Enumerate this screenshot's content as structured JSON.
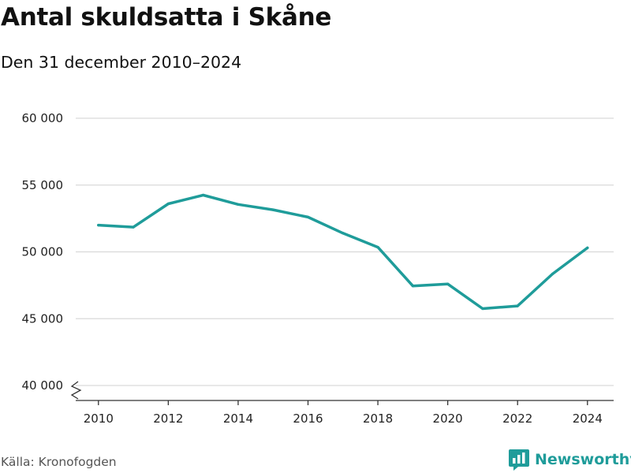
{
  "header": {
    "title": "Antal skuldsatta i Skåne",
    "subtitle": "Den 31 december 2010–2024"
  },
  "footer": {
    "source": "Källa: Kronofogden",
    "brand": "Newsworthy"
  },
  "colors": {
    "line": "#1f9c9a",
    "grid": "#d9d9d9",
    "axis": "#333333",
    "brand": "#1f9c9a"
  },
  "icons": {
    "brand_logo": "bar-chart-speech-bubble-icon",
    "axis_break": "zigzag-axis-break-icon"
  },
  "chart_data": {
    "type": "line",
    "title": "Antal skuldsatta i Skåne",
    "subtitle": "Den 31 december 2010–2024",
    "xlabel": "",
    "ylabel": "",
    "x": [
      2010,
      2011,
      2012,
      2013,
      2014,
      2015,
      2016,
      2017,
      2018,
      2019,
      2020,
      2021,
      2022,
      2023,
      2024
    ],
    "series": [
      {
        "values": [
          52000,
          51850,
          53600,
          54250,
          53550,
          53150,
          52600,
          51400,
          50350,
          47450,
          47600,
          45750,
          45950,
          48350,
          50300
        ]
      }
    ],
    "xlim": [
      2009.35,
      2024.75
    ],
    "ylim": [
      40000,
      60000
    ],
    "x_ticks": [
      2010,
      2012,
      2014,
      2016,
      2018,
      2020,
      2022,
      2024
    ],
    "x_tick_labels": [
      "2010",
      "2012",
      "2014",
      "2016",
      "2018",
      "2020",
      "2022",
      "2024"
    ],
    "y_ticks": [
      40000,
      45000,
      50000,
      55000,
      60000
    ],
    "y_tick_labels": [
      "40 000",
      "45 000",
      "50 000",
      "55 000",
      "60 000"
    ],
    "grid": "horizontal",
    "legend": "none",
    "y_axis_break": true
  }
}
